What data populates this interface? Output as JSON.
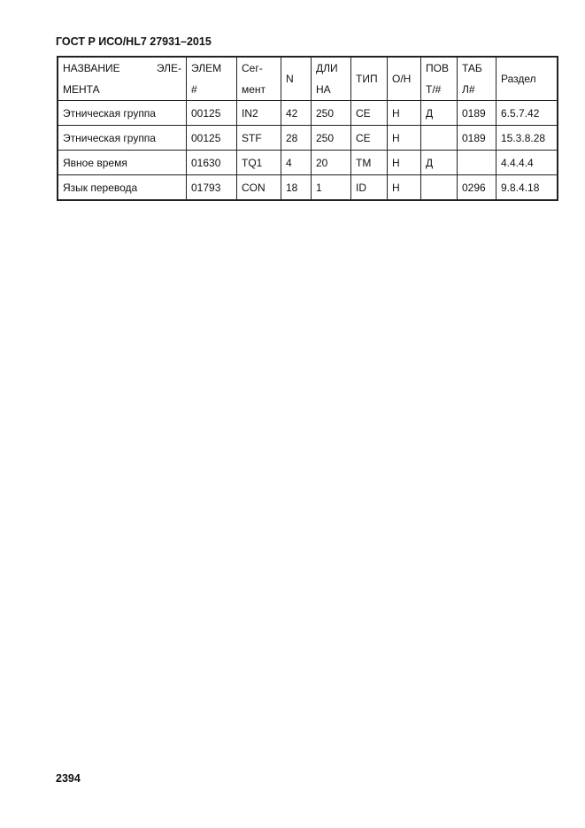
{
  "header": "ГОСТ Р ИСО/HL7 27931–2015",
  "page_number": "2394",
  "table": {
    "columns": [
      [
        "НАЗВАНИЕ",
        "ЭЛЕ-",
        "МЕНТА"
      ],
      [
        "ЭЛЕМ",
        "#"
      ],
      [
        "Сег-",
        "мент"
      ],
      [
        "N"
      ],
      [
        "ДЛИ",
        "НА"
      ],
      [
        "ТИП"
      ],
      [
        "О/Н"
      ],
      [
        "ПОВ",
        "Т/#"
      ],
      [
        "ТАБ",
        "Л#"
      ],
      [
        "Раздел"
      ]
    ],
    "rows": [
      [
        "Этническая группа",
        "00125",
        "IN2",
        "42",
        "250",
        "CE",
        "Н",
        "Д",
        "0189",
        "6.5.7.42"
      ],
      [
        "Этническая группа",
        "00125",
        "STF",
        "28",
        "250",
        "CE",
        "Н",
        "",
        "0189",
        "15.3.8.28"
      ],
      [
        "Явное время",
        "01630",
        "TQ1",
        "4",
        "20",
        "TM",
        "Н",
        "Д",
        "",
        "4.4.4.4"
      ],
      [
        "Язык перевода",
        "01793",
        "CON",
        "18",
        "1",
        "ID",
        "Н",
        "",
        "0296",
        "9.8.4.18"
      ]
    ]
  }
}
